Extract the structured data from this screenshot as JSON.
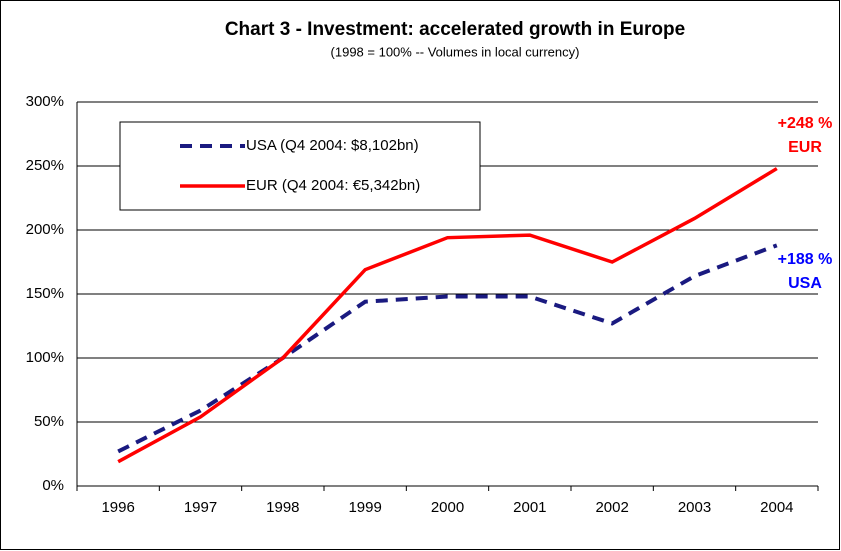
{
  "chart_data": {
    "type": "line",
    "title": "Chart 3 - Investment: accelerated growth in Europe",
    "subtitle": "(1998 = 100% -- Volumes in local currency)",
    "categories": [
      "1996",
      "1997",
      "1998",
      "1999",
      "2000",
      "2001",
      "2002",
      "2003",
      "2004"
    ],
    "series": [
      {
        "name": "USA (Q4 2004: $8,102bn)",
        "color": "#1a1a80",
        "dashed": true,
        "values": [
          27,
          59,
          100,
          144,
          148,
          148,
          127,
          164,
          188
        ]
      },
      {
        "name": "EUR (Q4 2004: €5,342bn)",
        "color": "#ff0000",
        "dashed": false,
        "values": [
          19,
          54,
          100,
          169,
          194,
          196,
          175,
          209,
          248
        ]
      }
    ],
    "annotations": [
      {
        "text": "+248 %",
        "color": "#ff0000"
      },
      {
        "text": "EUR",
        "color": "#ff0000"
      },
      {
        "text": "+188 %",
        "color": "#0000ff"
      },
      {
        "text": "USA",
        "color": "#0000ff"
      }
    ],
    "ylim": [
      0,
      300
    ],
    "yticks": [
      {
        "value": 0,
        "label": "0%"
      },
      {
        "value": 50,
        "label": "50%"
      },
      {
        "value": 100,
        "label": "100%"
      },
      {
        "value": 150,
        "label": "150%"
      },
      {
        "value": 200,
        "label": "200%"
      },
      {
        "value": 250,
        "label": "250%"
      },
      {
        "value": 300,
        "label": "300%"
      }
    ],
    "grid": true,
    "legend": "upper left"
  }
}
